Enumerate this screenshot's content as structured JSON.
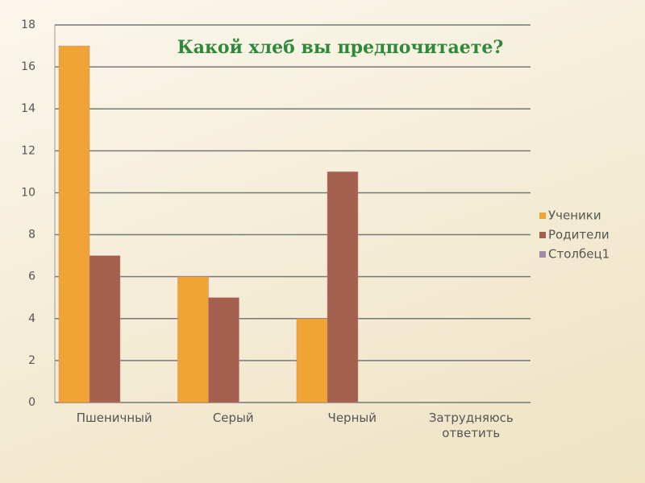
{
  "chart_data": {
    "type": "bar",
    "title": "Какой хлеб вы предпочитаете?",
    "categories": [
      "Пшеничный",
      "Серый",
      "Черный",
      "Затрудняюсь ответить"
    ],
    "series": [
      {
        "name": "Ученики",
        "color": "#f0a433",
        "values": [
          17,
          6,
          4,
          null
        ]
      },
      {
        "name": "Родители",
        "color": "#a4604f",
        "values": [
          7,
          5,
          11,
          null
        ]
      },
      {
        "name": "Столбец1",
        "color": "#a08ca4",
        "values": [
          null,
          null,
          null,
          null
        ]
      }
    ],
    "ylim": [
      0,
      18
    ],
    "yticks": [
      0,
      2,
      4,
      6,
      8,
      10,
      12,
      14,
      16,
      18
    ],
    "grid": true,
    "legend": "right"
  }
}
